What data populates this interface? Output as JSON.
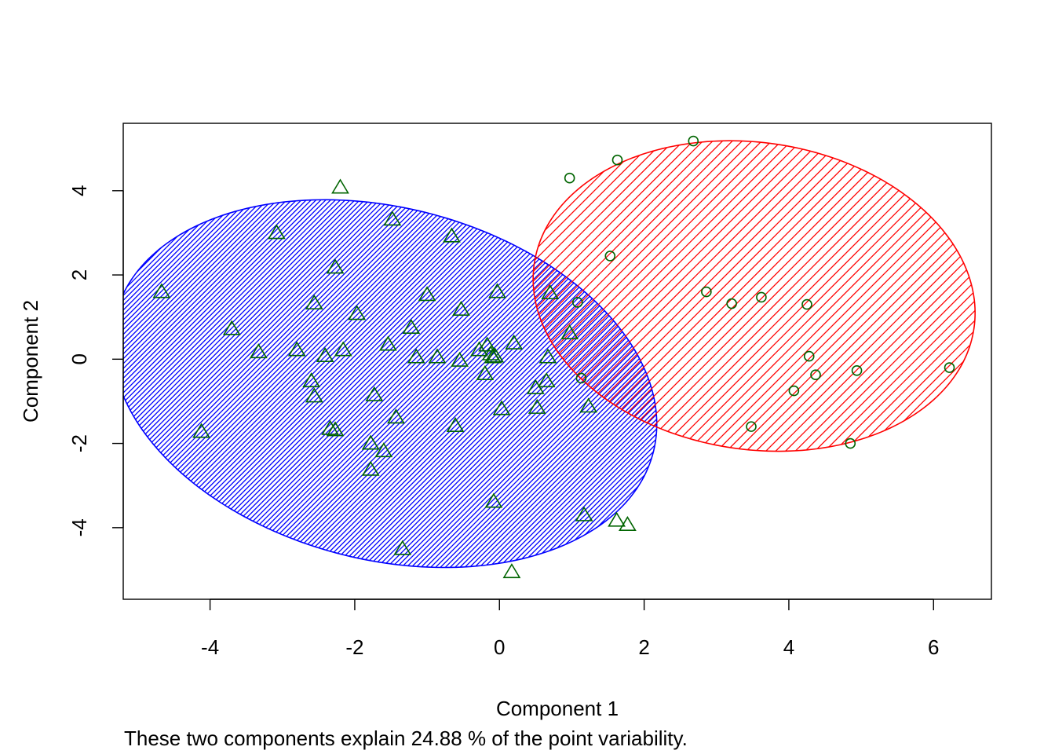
{
  "chart_data": {
    "type": "scatter",
    "xlabel": "Component 1",
    "ylabel": "Component 2",
    "caption": "These two components explain 24.88 % of the point variability.",
    "xlim": [
      -5.2,
      6.8
    ],
    "ylim": [
      -5.7,
      5.6
    ],
    "x_ticks": [
      -4,
      -2,
      0,
      2,
      4,
      6
    ],
    "y_ticks": [
      -4,
      -2,
      0,
      2,
      4
    ],
    "grid": false,
    "point_color": "#006400",
    "clusters": [
      {
        "id": "cluster-1",
        "marker": "triangle",
        "ellipse_color": "#0000ff",
        "ellipse": {
          "cx": -1.59,
          "cy": -0.58,
          "semi_a": 3.5,
          "semi_b": 4.58,
          "angle_deg": 28
        },
        "hatch_angle_deg": 45,
        "hatch_density": "dense",
        "points": [
          [
            -4.67,
            1.6
          ],
          [
            -4.12,
            -1.72
          ],
          [
            -3.7,
            0.72
          ],
          [
            -3.33,
            0.17
          ],
          [
            -3.08,
            3.0
          ],
          [
            -2.8,
            0.22
          ],
          [
            -2.6,
            -0.52
          ],
          [
            -2.56,
            1.33
          ],
          [
            -2.56,
            -0.88
          ],
          [
            -2.41,
            0.08
          ],
          [
            -2.34,
            -1.65
          ],
          [
            -2.27,
            -1.68
          ],
          [
            -2.27,
            2.18
          ],
          [
            -2.2,
            4.08
          ],
          [
            -2.16,
            0.22
          ],
          [
            -1.97,
            1.08
          ],
          [
            -1.78,
            -2.0
          ],
          [
            -1.78,
            -2.62
          ],
          [
            -1.73,
            -0.85
          ],
          [
            -1.6,
            -2.18
          ],
          [
            -1.54,
            0.35
          ],
          [
            -1.48,
            3.32
          ],
          [
            -1.43,
            -1.38
          ],
          [
            -1.34,
            -4.5
          ],
          [
            -1.22,
            0.75
          ],
          [
            -1.15,
            0.05
          ],
          [
            -1.0,
            1.53
          ],
          [
            -0.86,
            0.05
          ],
          [
            -0.66,
            2.92
          ],
          [
            -0.61,
            -1.58
          ],
          [
            -0.55,
            -0.03
          ],
          [
            -0.53,
            1.18
          ],
          [
            -0.28,
            0.22
          ],
          [
            -0.2,
            -0.35
          ],
          [
            -0.17,
            0.33
          ],
          [
            -0.12,
            0.12
          ],
          [
            -0.09,
            0.05
          ],
          [
            -0.06,
            0.07
          ],
          [
            -0.08,
            -3.38
          ],
          [
            -0.03,
            1.6
          ],
          [
            0.03,
            -1.18
          ],
          [
            0.17,
            -5.05
          ],
          [
            0.2,
            0.38
          ],
          [
            0.5,
            -0.68
          ],
          [
            0.52,
            -1.15
          ],
          [
            0.65,
            -0.52
          ],
          [
            0.67,
            0.05
          ],
          [
            0.7,
            1.57
          ],
          [
            0.97,
            0.62
          ],
          [
            1.17,
            -3.7
          ],
          [
            1.23,
            -1.12
          ],
          [
            1.62,
            -3.83
          ],
          [
            1.77,
            -3.93
          ]
        ]
      },
      {
        "id": "cluster-2",
        "marker": "circle",
        "ellipse_color": "#ff0000",
        "ellipse": {
          "cx": 3.52,
          "cy": 1.5,
          "semi_a": 3.0,
          "semi_b": 3.73,
          "angle_deg": 15
        },
        "hatch_angle_deg": 45,
        "hatch_density": "sparse",
        "points": [
          [
            0.97,
            4.3
          ],
          [
            1.08,
            1.35
          ],
          [
            1.13,
            -0.45
          ],
          [
            1.53,
            2.45
          ],
          [
            1.63,
            4.73
          ],
          [
            2.68,
            5.18
          ],
          [
            2.86,
            1.6
          ],
          [
            3.21,
            1.32
          ],
          [
            3.48,
            -1.6
          ],
          [
            3.62,
            1.47
          ],
          [
            4.07,
            -0.75
          ],
          [
            4.25,
            1.3
          ],
          [
            4.28,
            0.07
          ],
          [
            4.37,
            -0.37
          ],
          [
            4.85,
            -2.0
          ],
          [
            4.94,
            -0.27
          ],
          [
            6.22,
            -0.2
          ]
        ]
      }
    ]
  }
}
